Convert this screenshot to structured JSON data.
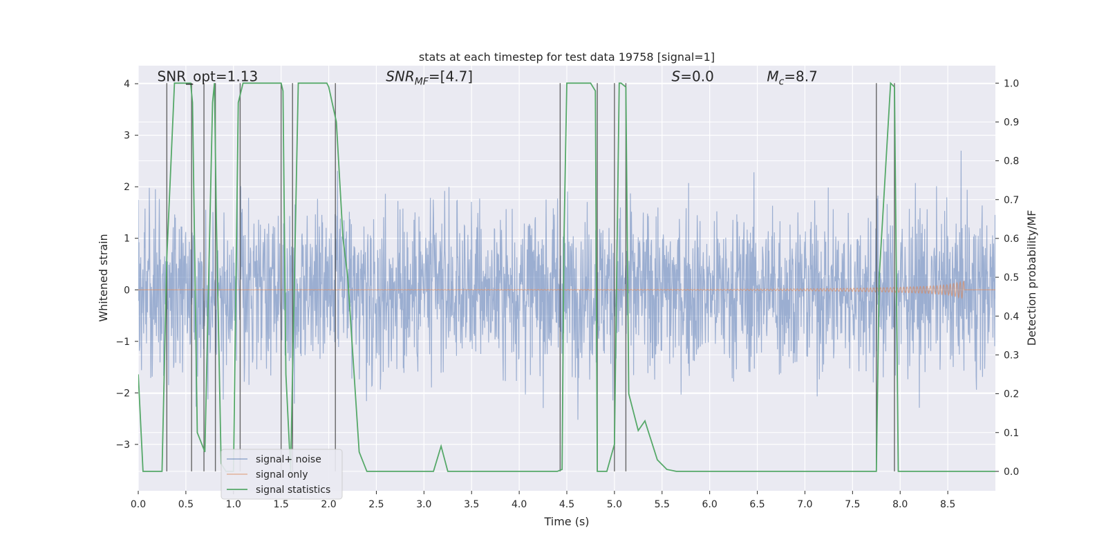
{
  "chart_data": {
    "type": "line",
    "title": "stats at each timestep for test data 19758 [signal=1]",
    "xlabel": "Time (s)",
    "ylabel": "Whitened strain",
    "ylabel_right": "Detection probability/MF",
    "xlim": [
      0.0,
      9.0
    ],
    "ylim": [
      -3.9,
      4.35
    ],
    "ylim_right": [
      -0.05,
      1.045
    ],
    "x_ticks": [
      0.0,
      0.5,
      1.0,
      1.5,
      2.0,
      2.5,
      3.0,
      3.5,
      4.0,
      4.5,
      5.0,
      5.5,
      6.0,
      6.5,
      7.0,
      7.5,
      8.0,
      8.5
    ],
    "x_tick_labels": [
      "0.0",
      "0.5",
      "1.0",
      "1.5",
      "2.0",
      "2.5",
      "3.0",
      "3.5",
      "4.0",
      "4.5",
      "5.0",
      "5.5",
      "6.0",
      "6.5",
      "7.0",
      "7.5",
      "8.0",
      "8.5"
    ],
    "y_ticks": [
      -3,
      -2,
      -1,
      0,
      1,
      2,
      3,
      4
    ],
    "y_tick_labels": [
      "−3",
      "−2",
      "−1",
      "0",
      "1",
      "2",
      "3",
      "4"
    ],
    "y_right_ticks": [
      0.0,
      0.1,
      0.2,
      0.3,
      0.4,
      0.5,
      0.6,
      0.7,
      0.8,
      0.9,
      1.0
    ],
    "y_right_tick_labels": [
      "0.0",
      "0.1",
      "0.2",
      "0.3",
      "0.4",
      "0.5",
      "0.6",
      "0.7",
      "0.8",
      "0.9",
      "1.0"
    ],
    "annotations": [
      {
        "text": "SNR_opt=1.13",
        "x": 0.2,
        "y": 4.05
      },
      {
        "text": "SNR_MF=[4.7]",
        "x": 2.6,
        "y": 4.05
      },
      {
        "text": "S=0.0",
        "x": 5.6,
        "y": 4.05
      },
      {
        "text": "M_c=8.7",
        "x": 6.6,
        "y": 4.05
      }
    ],
    "series": [
      {
        "name": "signal+ noise",
        "color": "#4c72b0",
        "kind": "noise",
        "amplitude_typical": 1.8,
        "amplitude_peak": 4.0
      },
      {
        "name": "signal only",
        "color": "#dd8452",
        "kind": "chirp",
        "x": [
          0.0,
          6.0,
          7.0,
          7.5,
          8.0,
          8.3,
          8.5,
          8.6,
          8.67
        ],
        "envelope": [
          0.0,
          0.01,
          0.02,
          0.03,
          0.05,
          0.07,
          0.1,
          0.14,
          0.17
        ]
      },
      {
        "name": "signal statistics",
        "color": "#55a868",
        "kind": "probability",
        "axis": "right",
        "x": [
          0.0,
          0.05,
          0.25,
          0.3,
          0.38,
          0.4,
          0.55,
          0.57,
          0.62,
          0.7,
          0.78,
          0.8,
          0.82,
          0.87,
          0.92,
          1.0,
          1.05,
          1.1,
          1.12,
          1.5,
          1.52,
          1.55,
          1.6,
          1.68,
          1.98,
          2.0,
          2.08,
          2.15,
          2.2,
          2.32,
          2.4,
          2.45,
          3.1,
          3.18,
          3.25,
          4.4,
          4.45,
          4.47,
          4.5,
          4.75,
          4.8,
          4.82,
          4.87,
          4.92,
          5.0,
          5.05,
          5.07,
          5.12,
          5.15,
          5.25,
          5.32,
          5.45,
          5.55,
          5.65,
          7.75,
          7.78,
          7.9,
          7.94,
          7.98,
          8.2,
          9.0
        ],
        "values": [
          0.25,
          0.0,
          0.0,
          0.55,
          1.0,
          1.0,
          1.0,
          0.95,
          0.1,
          0.05,
          0.95,
          1.0,
          0.65,
          0.02,
          0.0,
          0.0,
          0.95,
          1.0,
          1.0,
          1.0,
          0.98,
          0.25,
          0.0,
          1.0,
          1.0,
          0.99,
          0.9,
          0.6,
          0.5,
          0.05,
          0.0,
          0.0,
          0.0,
          0.065,
          0.0,
          0.0,
          0.005,
          0.6,
          1.0,
          1.0,
          0.98,
          0.0,
          0.0,
          0.0,
          0.07,
          1.0,
          1.0,
          0.99,
          0.2,
          0.105,
          0.13,
          0.03,
          0.005,
          0.0,
          0.0,
          0.5,
          1.0,
          0.99,
          0.0,
          0.0,
          0.0
        ]
      }
    ],
    "vertical_lines_x": [
      0.3,
      0.56,
      0.69,
      0.81,
      1.07,
      1.5,
      1.62,
      2.07,
      4.43,
      4.82,
      5.0,
      5.12,
      7.75,
      7.94
    ],
    "legend_location": "lower-left"
  }
}
